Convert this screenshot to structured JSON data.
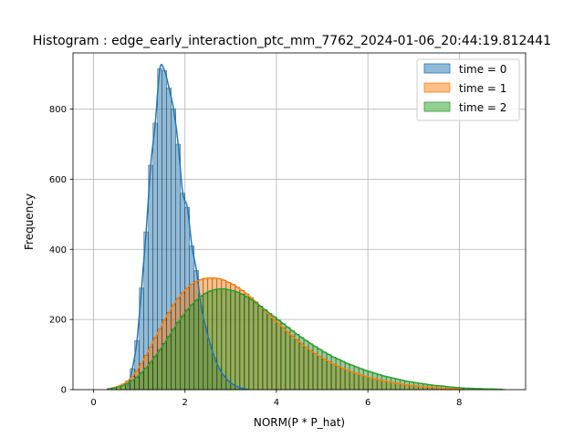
{
  "chart_data": {
    "type": "bar",
    "title": "Histogram : edge_early_interaction_ptc_mm_7762_2024-01-06_20:44:19.812441",
    "xlabel": "NORM(P * P_hat)",
    "ylabel": "Frequency",
    "xlim": [
      -0.45,
      9.45
    ],
    "ylim": [
      0,
      960
    ],
    "xticks": [
      0,
      2,
      4,
      6,
      8
    ],
    "yticks": [
      0,
      200,
      400,
      600,
      800
    ],
    "grid": true,
    "legend_position": "top-right",
    "bin_width": 0.1,
    "series": [
      {
        "name": "time = 0",
        "color": "#1f77b4",
        "bins": [
          [
            0.7,
            10
          ],
          [
            0.8,
            60
          ],
          [
            0.9,
            140
          ],
          [
            1.0,
            290
          ],
          [
            1.1,
            450
          ],
          [
            1.2,
            640
          ],
          [
            1.3,
            760
          ],
          [
            1.4,
            915
          ],
          [
            1.5,
            910
          ],
          [
            1.6,
            860
          ],
          [
            1.7,
            800
          ],
          [
            1.8,
            700
          ],
          [
            1.9,
            560
          ],
          [
            2.0,
            520
          ],
          [
            2.1,
            410
          ],
          [
            2.2,
            340
          ],
          [
            2.3,
            240
          ],
          [
            2.4,
            180
          ],
          [
            2.5,
            130
          ],
          [
            2.6,
            90
          ],
          [
            2.7,
            60
          ],
          [
            2.8,
            40
          ],
          [
            2.9,
            25
          ],
          [
            3.0,
            15
          ],
          [
            3.1,
            8
          ],
          [
            3.2,
            4
          ],
          [
            3.3,
            2
          ]
        ]
      },
      {
        "name": "time = 1",
        "color": "#ff7f0e",
        "bins": [
          [
            0.3,
            3
          ],
          [
            0.4,
            6
          ],
          [
            0.5,
            10
          ],
          [
            0.6,
            16
          ],
          [
            0.7,
            25
          ],
          [
            0.8,
            38
          ],
          [
            0.9,
            55
          ],
          [
            1.0,
            75
          ],
          [
            1.1,
            98
          ],
          [
            1.2,
            122
          ],
          [
            1.3,
            148
          ],
          [
            1.4,
            172
          ],
          [
            1.5,
            198
          ],
          [
            1.6,
            220
          ],
          [
            1.7,
            242
          ],
          [
            1.8,
            260
          ],
          [
            1.9,
            276
          ],
          [
            2.0,
            290
          ],
          [
            2.1,
            300
          ],
          [
            2.2,
            308
          ],
          [
            2.3,
            314
          ],
          [
            2.4,
            317
          ],
          [
            2.5,
            318
          ],
          [
            2.6,
            318
          ],
          [
            2.7,
            316
          ],
          [
            2.8,
            312
          ],
          [
            2.9,
            306
          ],
          [
            3.0,
            300
          ],
          [
            3.1,
            292
          ],
          [
            3.2,
            283
          ],
          [
            3.3,
            273
          ],
          [
            3.4,
            262
          ],
          [
            3.5,
            250
          ],
          [
            3.6,
            238
          ],
          [
            3.7,
            226
          ],
          [
            3.8,
            213
          ],
          [
            3.9,
            200
          ],
          [
            4.0,
            188
          ],
          [
            4.1,
            176
          ],
          [
            4.2,
            164
          ],
          [
            4.3,
            153
          ],
          [
            4.4,
            142
          ],
          [
            4.5,
            131
          ],
          [
            4.6,
            121
          ],
          [
            4.7,
            112
          ],
          [
            4.8,
            103
          ],
          [
            4.9,
            95
          ],
          [
            5.0,
            87
          ],
          [
            5.1,
            80
          ],
          [
            5.2,
            73
          ],
          [
            5.3,
            67
          ],
          [
            5.4,
            61
          ],
          [
            5.5,
            56
          ],
          [
            5.6,
            51
          ],
          [
            5.7,
            46
          ],
          [
            5.8,
            42
          ],
          [
            5.9,
            38
          ],
          [
            6.0,
            34
          ],
          [
            6.1,
            31
          ],
          [
            6.2,
            28
          ],
          [
            6.3,
            25
          ],
          [
            6.4,
            22
          ],
          [
            6.5,
            20
          ],
          [
            6.6,
            18
          ],
          [
            6.7,
            16
          ],
          [
            6.8,
            14
          ],
          [
            6.9,
            12
          ],
          [
            7.0,
            11
          ],
          [
            7.1,
            9
          ],
          [
            7.2,
            8
          ],
          [
            7.3,
            7
          ],
          [
            7.4,
            6
          ],
          [
            7.5,
            5
          ],
          [
            7.6,
            4
          ],
          [
            7.7,
            4
          ],
          [
            7.8,
            3
          ],
          [
            7.9,
            3
          ],
          [
            8.0,
            2
          ]
        ]
      },
      {
        "name": "time = 2",
        "color": "#2ca02c",
        "bins": [
          [
            0.3,
            3
          ],
          [
            0.4,
            5
          ],
          [
            0.5,
            8
          ],
          [
            0.6,
            12
          ],
          [
            0.7,
            18
          ],
          [
            0.8,
            26
          ],
          [
            0.9,
            36
          ],
          [
            1.0,
            48
          ],
          [
            1.1,
            62
          ],
          [
            1.2,
            78
          ],
          [
            1.3,
            95
          ],
          [
            1.4,
            113
          ],
          [
            1.5,
            132
          ],
          [
            1.6,
            152
          ],
          [
            1.7,
            172
          ],
          [
            1.8,
            192
          ],
          [
            1.9,
            210
          ],
          [
            2.0,
            227
          ],
          [
            2.1,
            242
          ],
          [
            2.2,
            255
          ],
          [
            2.3,
            266
          ],
          [
            2.4,
            275
          ],
          [
            2.5,
            281
          ],
          [
            2.6,
            285
          ],
          [
            2.7,
            287
          ],
          [
            2.8,
            287
          ],
          [
            2.9,
            285
          ],
          [
            3.0,
            282
          ],
          [
            3.1,
            278
          ],
          [
            3.2,
            272
          ],
          [
            3.3,
            265
          ],
          [
            3.4,
            257
          ],
          [
            3.5,
            248
          ],
          [
            3.6,
            238
          ],
          [
            3.7,
            228
          ],
          [
            3.8,
            218
          ],
          [
            3.9,
            208
          ],
          [
            4.0,
            198
          ],
          [
            4.1,
            188
          ],
          [
            4.2,
            178
          ],
          [
            4.3,
            168
          ],
          [
            4.4,
            158
          ],
          [
            4.5,
            149
          ],
          [
            4.6,
            140
          ],
          [
            4.7,
            131
          ],
          [
            4.8,
            123
          ],
          [
            4.9,
            115
          ],
          [
            5.0,
            107
          ],
          [
            5.1,
            100
          ],
          [
            5.2,
            93
          ],
          [
            5.3,
            87
          ],
          [
            5.4,
            81
          ],
          [
            5.5,
            75
          ],
          [
            5.6,
            70
          ],
          [
            5.7,
            65
          ],
          [
            5.8,
            60
          ],
          [
            5.9,
            55
          ],
          [
            6.0,
            51
          ],
          [
            6.1,
            47
          ],
          [
            6.2,
            43
          ],
          [
            6.3,
            39
          ],
          [
            6.4,
            36
          ],
          [
            6.5,
            33
          ],
          [
            6.6,
            30
          ],
          [
            6.7,
            27
          ],
          [
            6.8,
            24
          ],
          [
            6.9,
            22
          ],
          [
            7.0,
            20
          ],
          [
            7.1,
            18
          ],
          [
            7.2,
            16
          ],
          [
            7.3,
            14
          ],
          [
            7.4,
            12
          ],
          [
            7.5,
            11
          ],
          [
            7.6,
            10
          ],
          [
            7.7,
            8
          ],
          [
            7.8,
            7
          ],
          [
            7.9,
            6
          ],
          [
            8.0,
            5
          ],
          [
            8.1,
            4
          ],
          [
            8.2,
            4
          ],
          [
            8.3,
            3
          ],
          [
            8.4,
            3
          ],
          [
            8.5,
            2
          ],
          [
            8.6,
            2
          ],
          [
            8.7,
            2
          ],
          [
            8.8,
            1
          ],
          [
            8.9,
            1
          ]
        ]
      }
    ]
  }
}
